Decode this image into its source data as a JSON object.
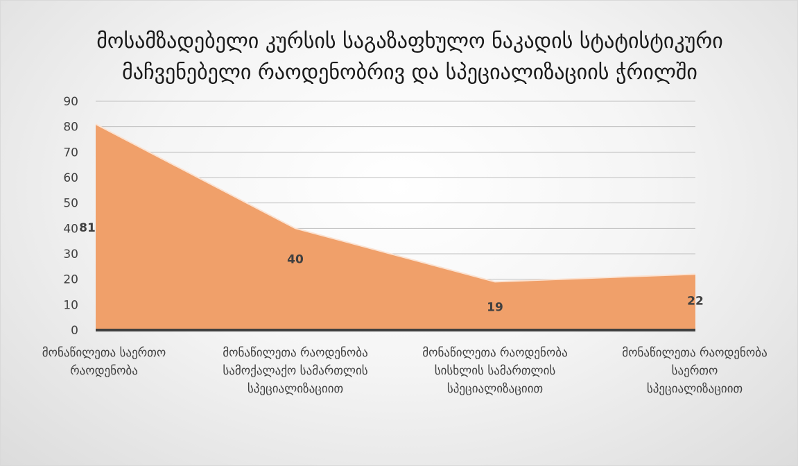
{
  "chart_data": {
    "type": "area",
    "title": "მოსამზადებელი კურსის საგაზაფხულო ნაკადის სტატისტიკური მაჩვენებელი რაოდენობრივ და სპეციალიზაციის ჭრილში",
    "categories": [
      [
        "მონაწილეთა საერთო",
        "რაოდენობა"
      ],
      [
        "მონაწილეთა რაოდენობა",
        "სამოქალაქო სამართლის",
        "სპეციალიზაციით"
      ],
      [
        "მონაწილეთა რაოდენობა",
        "სისხლის სამართლის",
        "სპეციალიზაციით"
      ],
      [
        "მონაწილეთა რაოდენობა",
        "საერთო",
        "სპეციალიზაციით"
      ]
    ],
    "series": [
      {
        "values": [
          81,
          40,
          19,
          22
        ],
        "color": "#f0a06a"
      }
    ],
    "data_labels": [
      "81",
      "40",
      "19",
      "22"
    ],
    "y_ticks": [
      "0",
      "10",
      "20",
      "30",
      "40",
      "50",
      "60",
      "70",
      "80",
      "90"
    ],
    "ylim": [
      0,
      90
    ],
    "grid": true,
    "legend": "none",
    "colors": {
      "area_fill": "#f0a06a",
      "area_edge": "#fbe3d3",
      "gridline": "#bfbfbf",
      "axis": "#404040"
    }
  }
}
